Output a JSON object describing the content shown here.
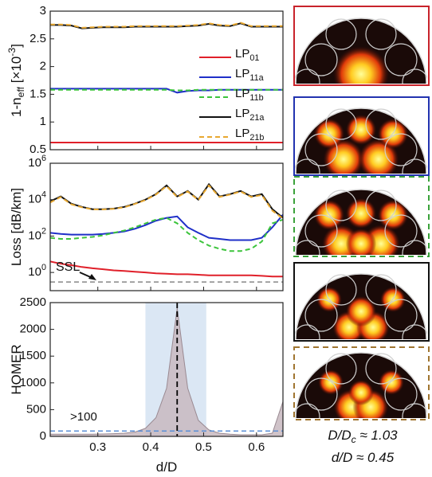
{
  "chart_data": [
    {
      "type": "line",
      "ylabel": "1-n_{eff} [×10^{-3}]",
      "x": [
        0.21,
        0.23,
        0.25,
        0.27,
        0.29,
        0.31,
        0.33,
        0.35,
        0.37,
        0.39,
        0.41,
        0.43,
        0.45,
        0.47,
        0.49,
        0.51,
        0.53,
        0.55,
        0.57,
        0.59,
        0.61,
        0.63,
        0.65
      ],
      "xlim": [
        0.21,
        0.65
      ],
      "xticks": [
        0.3,
        0.4,
        0.5,
        0.6
      ],
      "ylim": [
        0.5,
        3
      ],
      "yticks": [
        0.5,
        1,
        1.5,
        2,
        2.5,
        3
      ],
      "legend": "right",
      "series": [
        {
          "name": "LP_{01}",
          "color": "#e0202a",
          "dash": false,
          "values": [
            0.63,
            0.63,
            0.63,
            0.63,
            0.63,
            0.63,
            0.63,
            0.63,
            0.63,
            0.63,
            0.63,
            0.63,
            0.63,
            0.63,
            0.63,
            0.63,
            0.63,
            0.63,
            0.63,
            0.63,
            0.63,
            0.63,
            0.63
          ]
        },
        {
          "name": "LP_{11a}",
          "color": "#1f2fc8",
          "dash": false,
          "values": [
            1.6,
            1.6,
            1.6,
            1.6,
            1.6,
            1.6,
            1.6,
            1.6,
            1.6,
            1.6,
            1.6,
            1.6,
            1.53,
            1.56,
            1.57,
            1.57,
            1.58,
            1.58,
            1.58,
            1.58,
            1.58,
            1.58,
            1.58
          ]
        },
        {
          "name": "LP_{11b}",
          "color": "#3cc43c",
          "dash": true,
          "values": [
            1.58,
            1.58,
            1.58,
            1.58,
            1.58,
            1.58,
            1.58,
            1.58,
            1.58,
            1.58,
            1.58,
            1.58,
            1.57,
            1.57,
            1.58,
            1.58,
            1.58,
            1.58,
            1.58,
            1.58,
            1.58,
            1.58,
            1.58
          ]
        },
        {
          "name": "LP_{21a}",
          "color": "#111111",
          "dash": false,
          "values": [
            2.75,
            2.75,
            2.74,
            2.69,
            2.7,
            2.71,
            2.71,
            2.71,
            2.72,
            2.72,
            2.72,
            2.72,
            2.72,
            2.73,
            2.74,
            2.77,
            2.74,
            2.73,
            2.78,
            2.72,
            2.72,
            2.72,
            2.72
          ]
        },
        {
          "name": "LP_{21b}",
          "color": "#e8a830",
          "dash": true,
          "values": [
            2.76,
            2.76,
            2.75,
            2.7,
            2.71,
            2.72,
            2.72,
            2.72,
            2.73,
            2.73,
            2.73,
            2.73,
            2.73,
            2.74,
            2.75,
            2.78,
            2.75,
            2.74,
            2.79,
            2.73,
            2.73,
            2.73,
            2.73
          ]
        }
      ]
    },
    {
      "type": "line",
      "ylabel": "Loss [dB/km]",
      "log_scale": true,
      "x": [
        0.21,
        0.23,
        0.25,
        0.27,
        0.29,
        0.31,
        0.33,
        0.35,
        0.37,
        0.39,
        0.41,
        0.43,
        0.45,
        0.47,
        0.49,
        0.51,
        0.53,
        0.55,
        0.57,
        0.59,
        0.61,
        0.63,
        0.65
      ],
      "xlim": [
        0.21,
        0.65
      ],
      "xticks": [
        0.3,
        0.4,
        0.5,
        0.6
      ],
      "ylim": [
        0.1,
        1000000
      ],
      "yticks": [
        {
          "value": 1,
          "label": "10^{0}"
        },
        {
          "value": 100,
          "label": "10^{2}"
        },
        {
          "value": 10000,
          "label": "10^{4}"
        },
        {
          "value": 1000000,
          "label": "10^{6}"
        }
      ],
      "series": [
        {
          "name": "LP_{01}",
          "color": "#e0202a",
          "dash": false,
          "values": [
            4,
            3,
            2.5,
            2,
            1.7,
            1.5,
            1.3,
            1.2,
            1.1,
            1,
            0.9,
            0.85,
            0.8,
            0.8,
            0.75,
            0.7,
            0.7,
            0.7,
            0.7,
            0.7,
            0.65,
            0.6,
            0.6
          ]
        },
        {
          "name": "LP_{11a}",
          "color": "#1f2fc8",
          "dash": false,
          "values": [
            150,
            130,
            120,
            120,
            120,
            130,
            150,
            180,
            250,
            400,
            700,
            1000,
            1200,
            300,
            150,
            80,
            70,
            60,
            60,
            60,
            80,
            300,
            1500
          ]
        },
        {
          "name": "LP_{11b}",
          "color": "#3cc43c",
          "dash": true,
          "values": [
            80,
            70,
            70,
            80,
            90,
            110,
            150,
            200,
            300,
            500,
            800,
            1000,
            500,
            150,
            60,
            30,
            20,
            15,
            15,
            20,
            50,
            500,
            800
          ]
        },
        {
          "name": "LP_{21a}",
          "color": "#111111",
          "dash": false,
          "values": [
            8000,
            15000,
            6000,
            4000,
            3000,
            3000,
            3200,
            4000,
            6000,
            10000,
            20000,
            60000,
            15000,
            30000,
            10000,
            70000,
            15000,
            20000,
            30000,
            15000,
            20000,
            3000,
            1000
          ]
        },
        {
          "name": "LP_{21b}",
          "color": "#e8a830",
          "dash": true,
          "values": [
            7000,
            14000,
            5500,
            3800,
            2900,
            2900,
            3100,
            3800,
            5800,
            9500,
            19000,
            55000,
            14000,
            28000,
            9500,
            60000,
            14000,
            19000,
            28000,
            14000,
            18000,
            2500,
            900
          ]
        }
      ],
      "reference_line": {
        "y": 0.3,
        "color": "#888888",
        "label": "SSL"
      }
    },
    {
      "type": "area",
      "ylabel": "HOMER",
      "xlabel": "d/D",
      "x": [
        0.21,
        0.23,
        0.25,
        0.27,
        0.29,
        0.31,
        0.33,
        0.35,
        0.37,
        0.39,
        0.41,
        0.43,
        0.45,
        0.47,
        0.49,
        0.51,
        0.53,
        0.55,
        0.57,
        0.59,
        0.61,
        0.63,
        0.65
      ],
      "xlim": [
        0.21,
        0.65
      ],
      "xticks": [
        0.3,
        0.4,
        0.5,
        0.6
      ],
      "ylim": [
        0,
        2500
      ],
      "yticks": [
        0,
        500,
        1000,
        1500,
        2000,
        2500
      ],
      "color": "#c8b8c0",
      "values": [
        40,
        40,
        40,
        40,
        40,
        45,
        50,
        60,
        80,
        150,
        350,
        900,
        2400,
        900,
        300,
        120,
        60,
        40,
        30,
        30,
        30,
        60,
        650
      ],
      "shaded_span": {
        "x": [
          0.39,
          0.505
        ],
        "color": "#dbe7f4"
      },
      "vertical_line": {
        "x": 0.45,
        "color": "#000000"
      },
      "reference_line": {
        "y": 100,
        "color": "#5b8fd6",
        "label": ">100"
      }
    }
  ],
  "annotations": [
    "D/D_{c} ≈ 1.03",
    "d/D ≈ 0.45"
  ]
}
